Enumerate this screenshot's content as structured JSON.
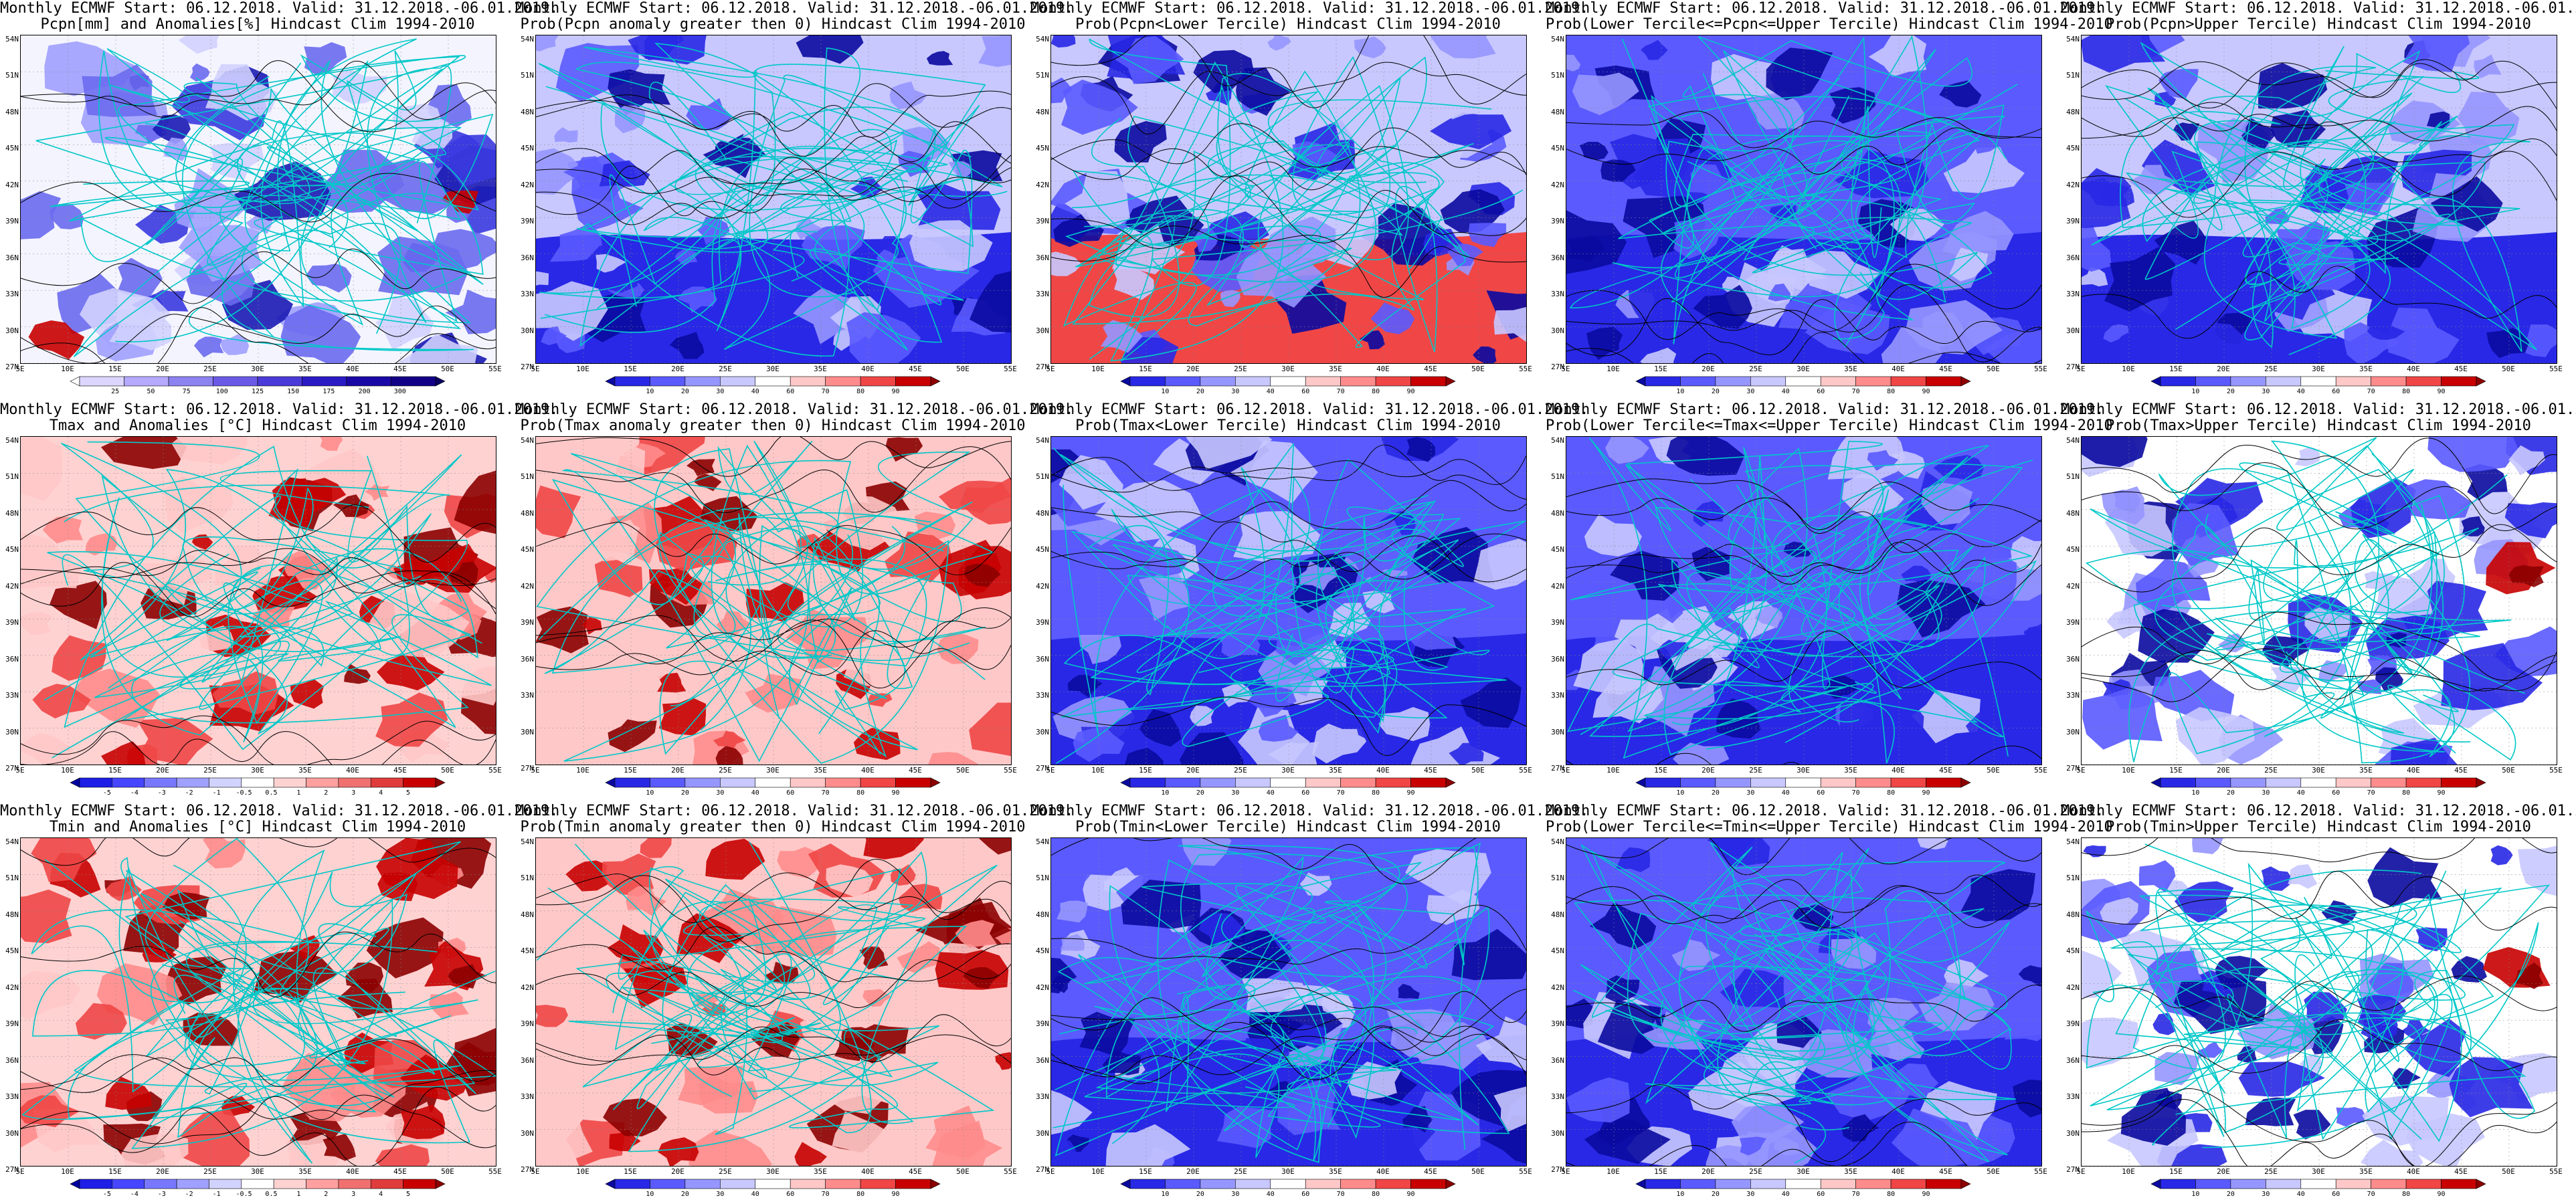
{
  "title_line1": "Monthly ECMWF Start: 06.12.2018. Valid: 31.12.2018.-06.01.2019.",
  "panels": [
    {
      "subtitle": "Pcpn[mm] and Anomalies[%] Hindcast Clim 1994-2010",
      "kind": "pcpn-anom"
    },
    {
      "subtitle": "Prob(Pcpn anomaly greater then 0) Hindcast Clim 1994-2010",
      "kind": "prob-bluewhite"
    },
    {
      "subtitle": "Prob(Pcpn<Lower Tercile) Hindcast Clim 1994-2010",
      "kind": "prob-redsouth"
    },
    {
      "subtitle": "Prob(Lower Tercile<=Pcpn<=Upper Tercile) Hindcast Clim 1994-2010",
      "kind": "prob-deepblue"
    },
    {
      "subtitle": "Prob(Pcpn>Upper Tercile) Hindcast Clim 1994-2010",
      "kind": "prob-bluewhite"
    },
    {
      "subtitle": "Tmax and Anomalies [°C] Hindcast Clim 1994-2010",
      "kind": "temp-anom"
    },
    {
      "subtitle": "Prob(Tmax anomaly greater then 0) Hindcast Clim 1994-2010",
      "kind": "prob-red"
    },
    {
      "subtitle": "Prob(Tmax<Lower Tercile) Hindcast Clim 1994-2010",
      "kind": "prob-deepblue"
    },
    {
      "subtitle": "Prob(Lower Tercile<=Tmax<=Upper Tercile) Hindcast Clim 1994-2010",
      "kind": "prob-deepblue"
    },
    {
      "subtitle": "Prob(Tmax>Upper Tercile) Hindcast Clim 1994-2010",
      "kind": "prob-whitered"
    },
    {
      "subtitle": "Tmin and Anomalies [°C] Hindcast Clim 1994-2010",
      "kind": "temp-anom"
    },
    {
      "subtitle": "Prob(Tmin anomaly greater then 0) Hindcast Clim 1994-2010",
      "kind": "prob-red"
    },
    {
      "subtitle": "Prob(Tmin<Lower Tercile) Hindcast Clim 1994-2010",
      "kind": "prob-deepblue"
    },
    {
      "subtitle": "Prob(Lower Tercile<=Tmin<=Upper Tercile) Hindcast Clim 1994-2010",
      "kind": "prob-deepblue"
    },
    {
      "subtitle": "Prob(Tmin>Upper Tercile) Hindcast Clim 1994-2010",
      "kind": "prob-whitered"
    }
  ],
  "lat_labels": [
    "54N",
    "51N",
    "48N",
    "45N",
    "42N",
    "39N",
    "36N",
    "33N",
    "30N",
    "27N"
  ],
  "lon_labels": [
    "5E",
    "10E",
    "15E",
    "20E",
    "25E",
    "30E",
    "35E",
    "40E",
    "45E",
    "50E",
    "55E"
  ],
  "colorbars": {
    "pcpn": {
      "labels": [
        "25",
        "50",
        "75",
        "100",
        "125",
        "150",
        "175",
        "200",
        "300"
      ],
      "colors": [
        "#ffffff",
        "#dcd6ff",
        "#b4aaff",
        "#8c82f0",
        "#6a5ae6",
        "#4a3ad7",
        "#2a1ac4",
        "#1a08a6",
        "#120086",
        "#0a0060"
      ]
    },
    "prob": {
      "labels": [
        "10",
        "20",
        "30",
        "40",
        "60",
        "70",
        "80",
        "90"
      ],
      "colors": [
        "#0a0aa0",
        "#2828e6",
        "#5a5aff",
        "#9696ff",
        "#c8c8ff",
        "#ffffff",
        "#ffc8c8",
        "#ff8c8c",
        "#f04646",
        "#c80000",
        "#8c0000"
      ]
    },
    "temp": {
      "labels": [
        "-5",
        "-4",
        "-3",
        "-2",
        "-1",
        "-0.5",
        "0.5",
        "1",
        "2",
        "3",
        "4",
        "5"
      ],
      "colors": [
        "#0000a0",
        "#1e1ee6",
        "#4646ff",
        "#7878ff",
        "#a0a0ff",
        "#d2d2ff",
        "#ffffff",
        "#ffd2d2",
        "#ffa0a0",
        "#f07070",
        "#e03c3c",
        "#c80000",
        "#8c0000"
      ]
    }
  },
  "colors": {
    "coast": "#00c8c8",
    "contour": "#000000"
  }
}
